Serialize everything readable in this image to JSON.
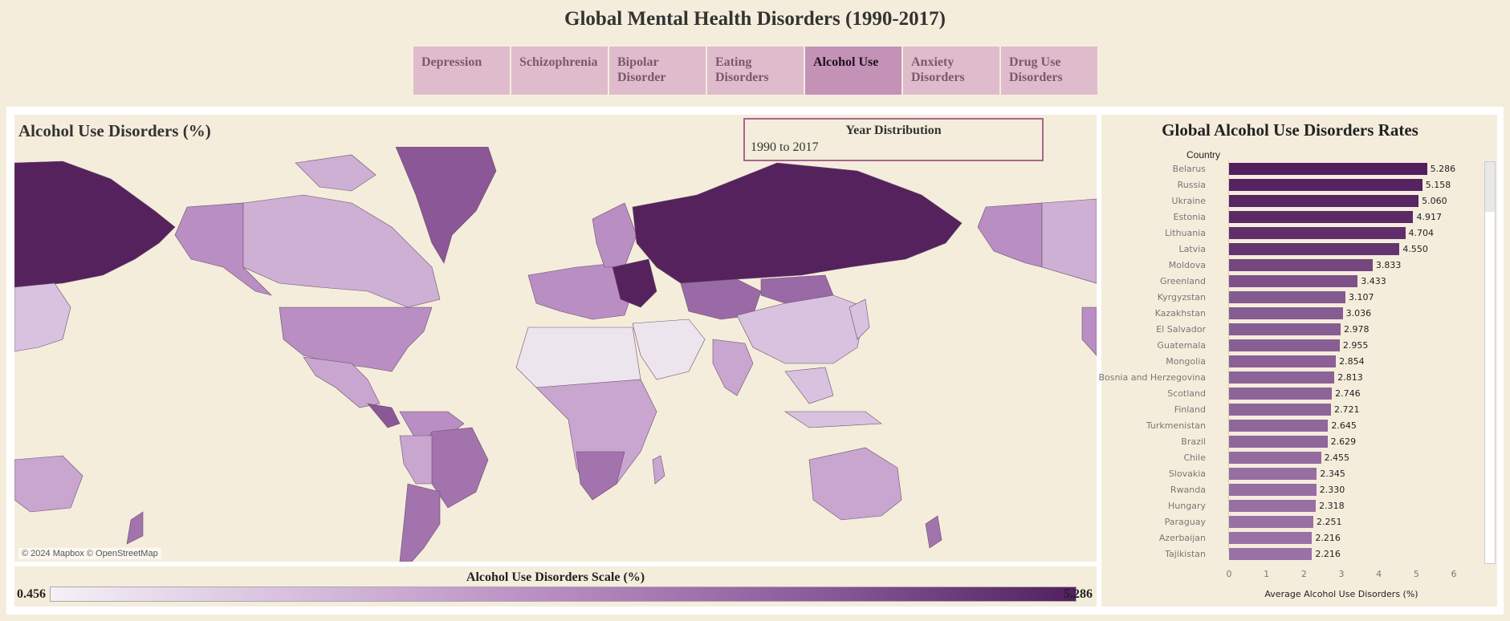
{
  "page": {
    "title": "Global Mental Health Disorders (1990-2017)"
  },
  "tabs": [
    {
      "label": "Depression",
      "active": false
    },
    {
      "label": "Schizophrenia",
      "active": false
    },
    {
      "label": "Bipolar Disorder",
      "active": false
    },
    {
      "label": "Eating Disorders",
      "active": false
    },
    {
      "label": "Alcohol Use",
      "active": true
    },
    {
      "label": "Anxiety Disorders",
      "active": false
    },
    {
      "label": "Drug Use Disorders",
      "active": false
    }
  ],
  "map": {
    "title": "Alcohol Use Disorders (%)",
    "attribution": "© 2024 Mapbox © OpenStreetMap"
  },
  "year_filter": {
    "title": "Year Distribution",
    "value": "1990 to 2017"
  },
  "legend": {
    "title": "Alcohol Use Disorders Scale (%)",
    "min": "0.456",
    "max": "5.286"
  },
  "colors": {
    "dark": "#52205e",
    "light": "#f4f0f6",
    "active_tab": "#c392b6",
    "tab": "#dfbccb"
  },
  "chart_data": {
    "type": "bar",
    "title": "Global Alcohol Use Disorders Rates",
    "category_header": "Country",
    "xlabel": "Average Alcohol Use Disorders (%)",
    "xlim": [
      0,
      6
    ],
    "xticks": [
      "0",
      "1",
      "2",
      "3",
      "4",
      "5",
      "6"
    ],
    "categories": [
      "Belarus",
      "Russia",
      "Ukraine",
      "Estonia",
      "Lithuania",
      "Latvia",
      "Moldova",
      "Greenland",
      "Kyrgyzstan",
      "Kazakhstan",
      "El Salvador",
      "Guatemala",
      "Mongolia",
      "Bosnia and Herzegovina",
      "Scotland",
      "Finland",
      "Turkmenistan",
      "Brazil",
      "Chile",
      "Slovakia",
      "Rwanda",
      "Hungary",
      "Paraguay",
      "Azerbaijan",
      "Tajikistan"
    ],
    "values": [
      5.286,
      5.158,
      5.06,
      4.917,
      4.704,
      4.55,
      3.833,
      3.433,
      3.107,
      3.036,
      2.978,
      2.955,
      2.854,
      2.813,
      2.746,
      2.721,
      2.645,
      2.629,
      2.455,
      2.345,
      2.33,
      2.318,
      2.251,
      2.216,
      2.216
    ],
    "value_labels": [
      "5.286",
      "5.158",
      "5.060",
      "4.917",
      "4.704",
      "4.550",
      "3.833",
      "3.433",
      "3.107",
      "3.036",
      "2.978",
      "2.955",
      "2.854",
      "2.813",
      "2.746",
      "2.721",
      "2.645",
      "2.629",
      "2.455",
      "2.345",
      "2.330",
      "2.318",
      "2.251",
      "2.216",
      "2.216"
    ]
  }
}
